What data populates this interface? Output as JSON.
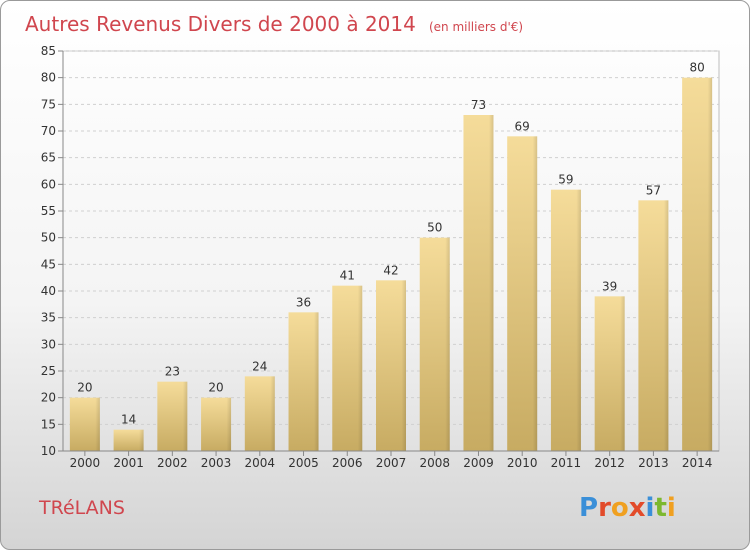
{
  "chart_data": {
    "type": "bar",
    "title": "Autres Revenus Divers de 2000 à 2014",
    "unit_note": "(en milliers d'€)",
    "categories": [
      "2000",
      "2001",
      "2002",
      "2003",
      "2004",
      "2005",
      "2006",
      "2007",
      "2008",
      "2009",
      "2010",
      "2011",
      "2012",
      "2013",
      "2014"
    ],
    "values": [
      20,
      14,
      23,
      20,
      24,
      36,
      41,
      42,
      50,
      73,
      69,
      59,
      39,
      57,
      80
    ],
    "ylim": [
      10,
      85
    ],
    "yticks": [
      10,
      15,
      20,
      25,
      30,
      35,
      40,
      45,
      50,
      55,
      60,
      65,
      70,
      75,
      80,
      85
    ],
    "grid": true,
    "bar_color": "#e6c67a"
  },
  "footer": {
    "place": "TRéLANS",
    "logo_letters": [
      "P",
      "r",
      "o",
      "x",
      "i",
      "t",
      "i"
    ],
    "logo_colors": [
      "#3a8fd8",
      "#e24b2a",
      "#f0a020",
      "#e24b2a",
      "#3a8fd8",
      "#7cb82f",
      "#f0a020"
    ]
  }
}
